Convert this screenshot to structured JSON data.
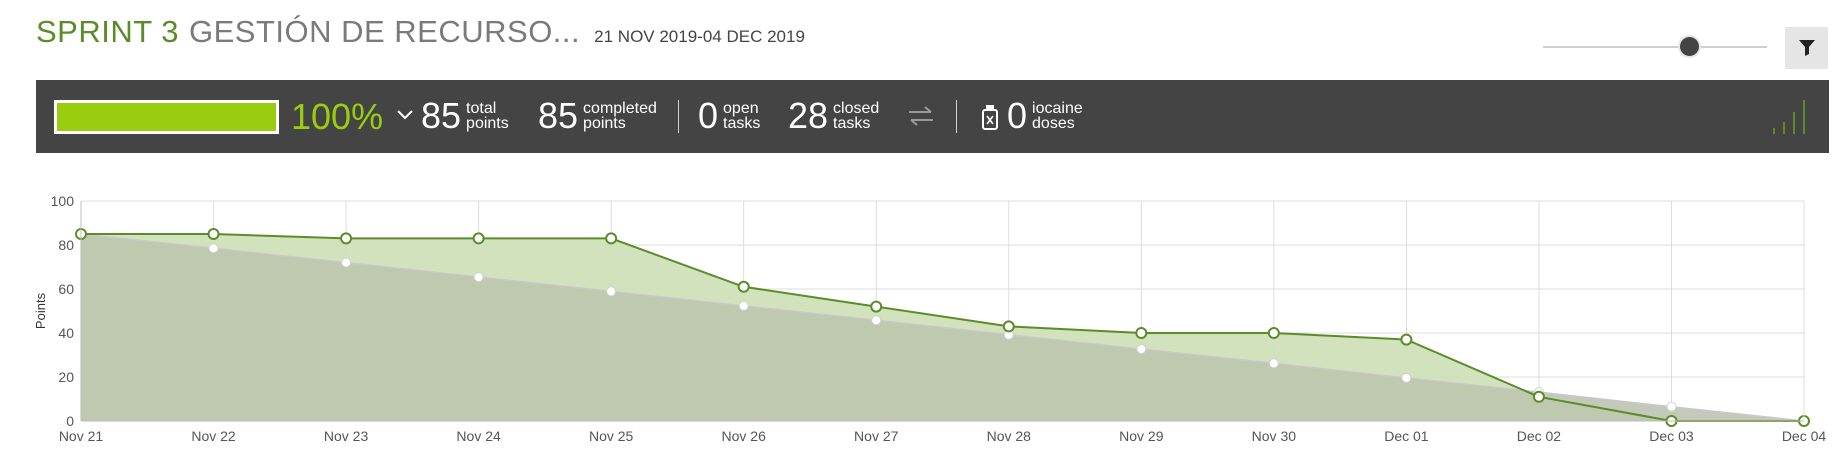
{
  "header": {
    "sprint_name": "SPRINT 3",
    "sprint_subtitle": "GESTIÓN DE RECURSO...",
    "dates": "21 NOV 2019-04 DEC 2019"
  },
  "zoom": {
    "level": 0.67
  },
  "summary": {
    "progress_percent": 100,
    "percent_label": "100%",
    "total_points": "85",
    "total_points_label_1": "total",
    "total_points_label_2": "points",
    "completed_points": "85",
    "completed_points_label_1": "completed",
    "completed_points_label_2": "points",
    "open_tasks": "0",
    "open_tasks_label_1": "open",
    "open_tasks_label_2": "tasks",
    "closed_tasks": "28",
    "closed_tasks_label_1": "closed",
    "closed_tasks_label_2": "tasks",
    "iocaine_doses": "0",
    "iocaine_label_1": "iocaine",
    "iocaine_label_2": "doses"
  },
  "colors": {
    "accent_green": "#9acd0f",
    "brand_green": "#5b8c2a",
    "bar_background": "#444444",
    "ideal_area": "#b8bfa9",
    "real_area": "#cfe0b8"
  },
  "icons": [
    "filter-icon",
    "chevron-down-icon",
    "swap-arrows-icon",
    "iocaine-bottle-icon",
    "bars-chart-icon"
  ],
  "chart_data": {
    "type": "area",
    "categories": [
      "Nov 21",
      "Nov 22",
      "Nov 23",
      "Nov 24",
      "Nov 25",
      "Nov 26",
      "Nov 27",
      "Nov 28",
      "Nov 29",
      "Nov 30",
      "Dec 01",
      "Dec 02",
      "Dec 03",
      "Dec 04"
    ],
    "series": [
      {
        "values": [
          85,
          85,
          83,
          83,
          83,
          61,
          52,
          43,
          40,
          40,
          37,
          11,
          0,
          0
        ]
      },
      {
        "values": [
          85,
          78.5,
          72,
          65.4,
          58.9,
          52.3,
          45.8,
          39.2,
          32.7,
          26.2,
          19.6,
          13.1,
          6.5,
          0
        ]
      }
    ],
    "ylabel": "Points",
    "ylim": [
      0,
      100
    ],
    "yticks": [
      "0",
      "20",
      "40",
      "60",
      "80",
      "100"
    ],
    "grid": true,
    "legend": "none"
  }
}
